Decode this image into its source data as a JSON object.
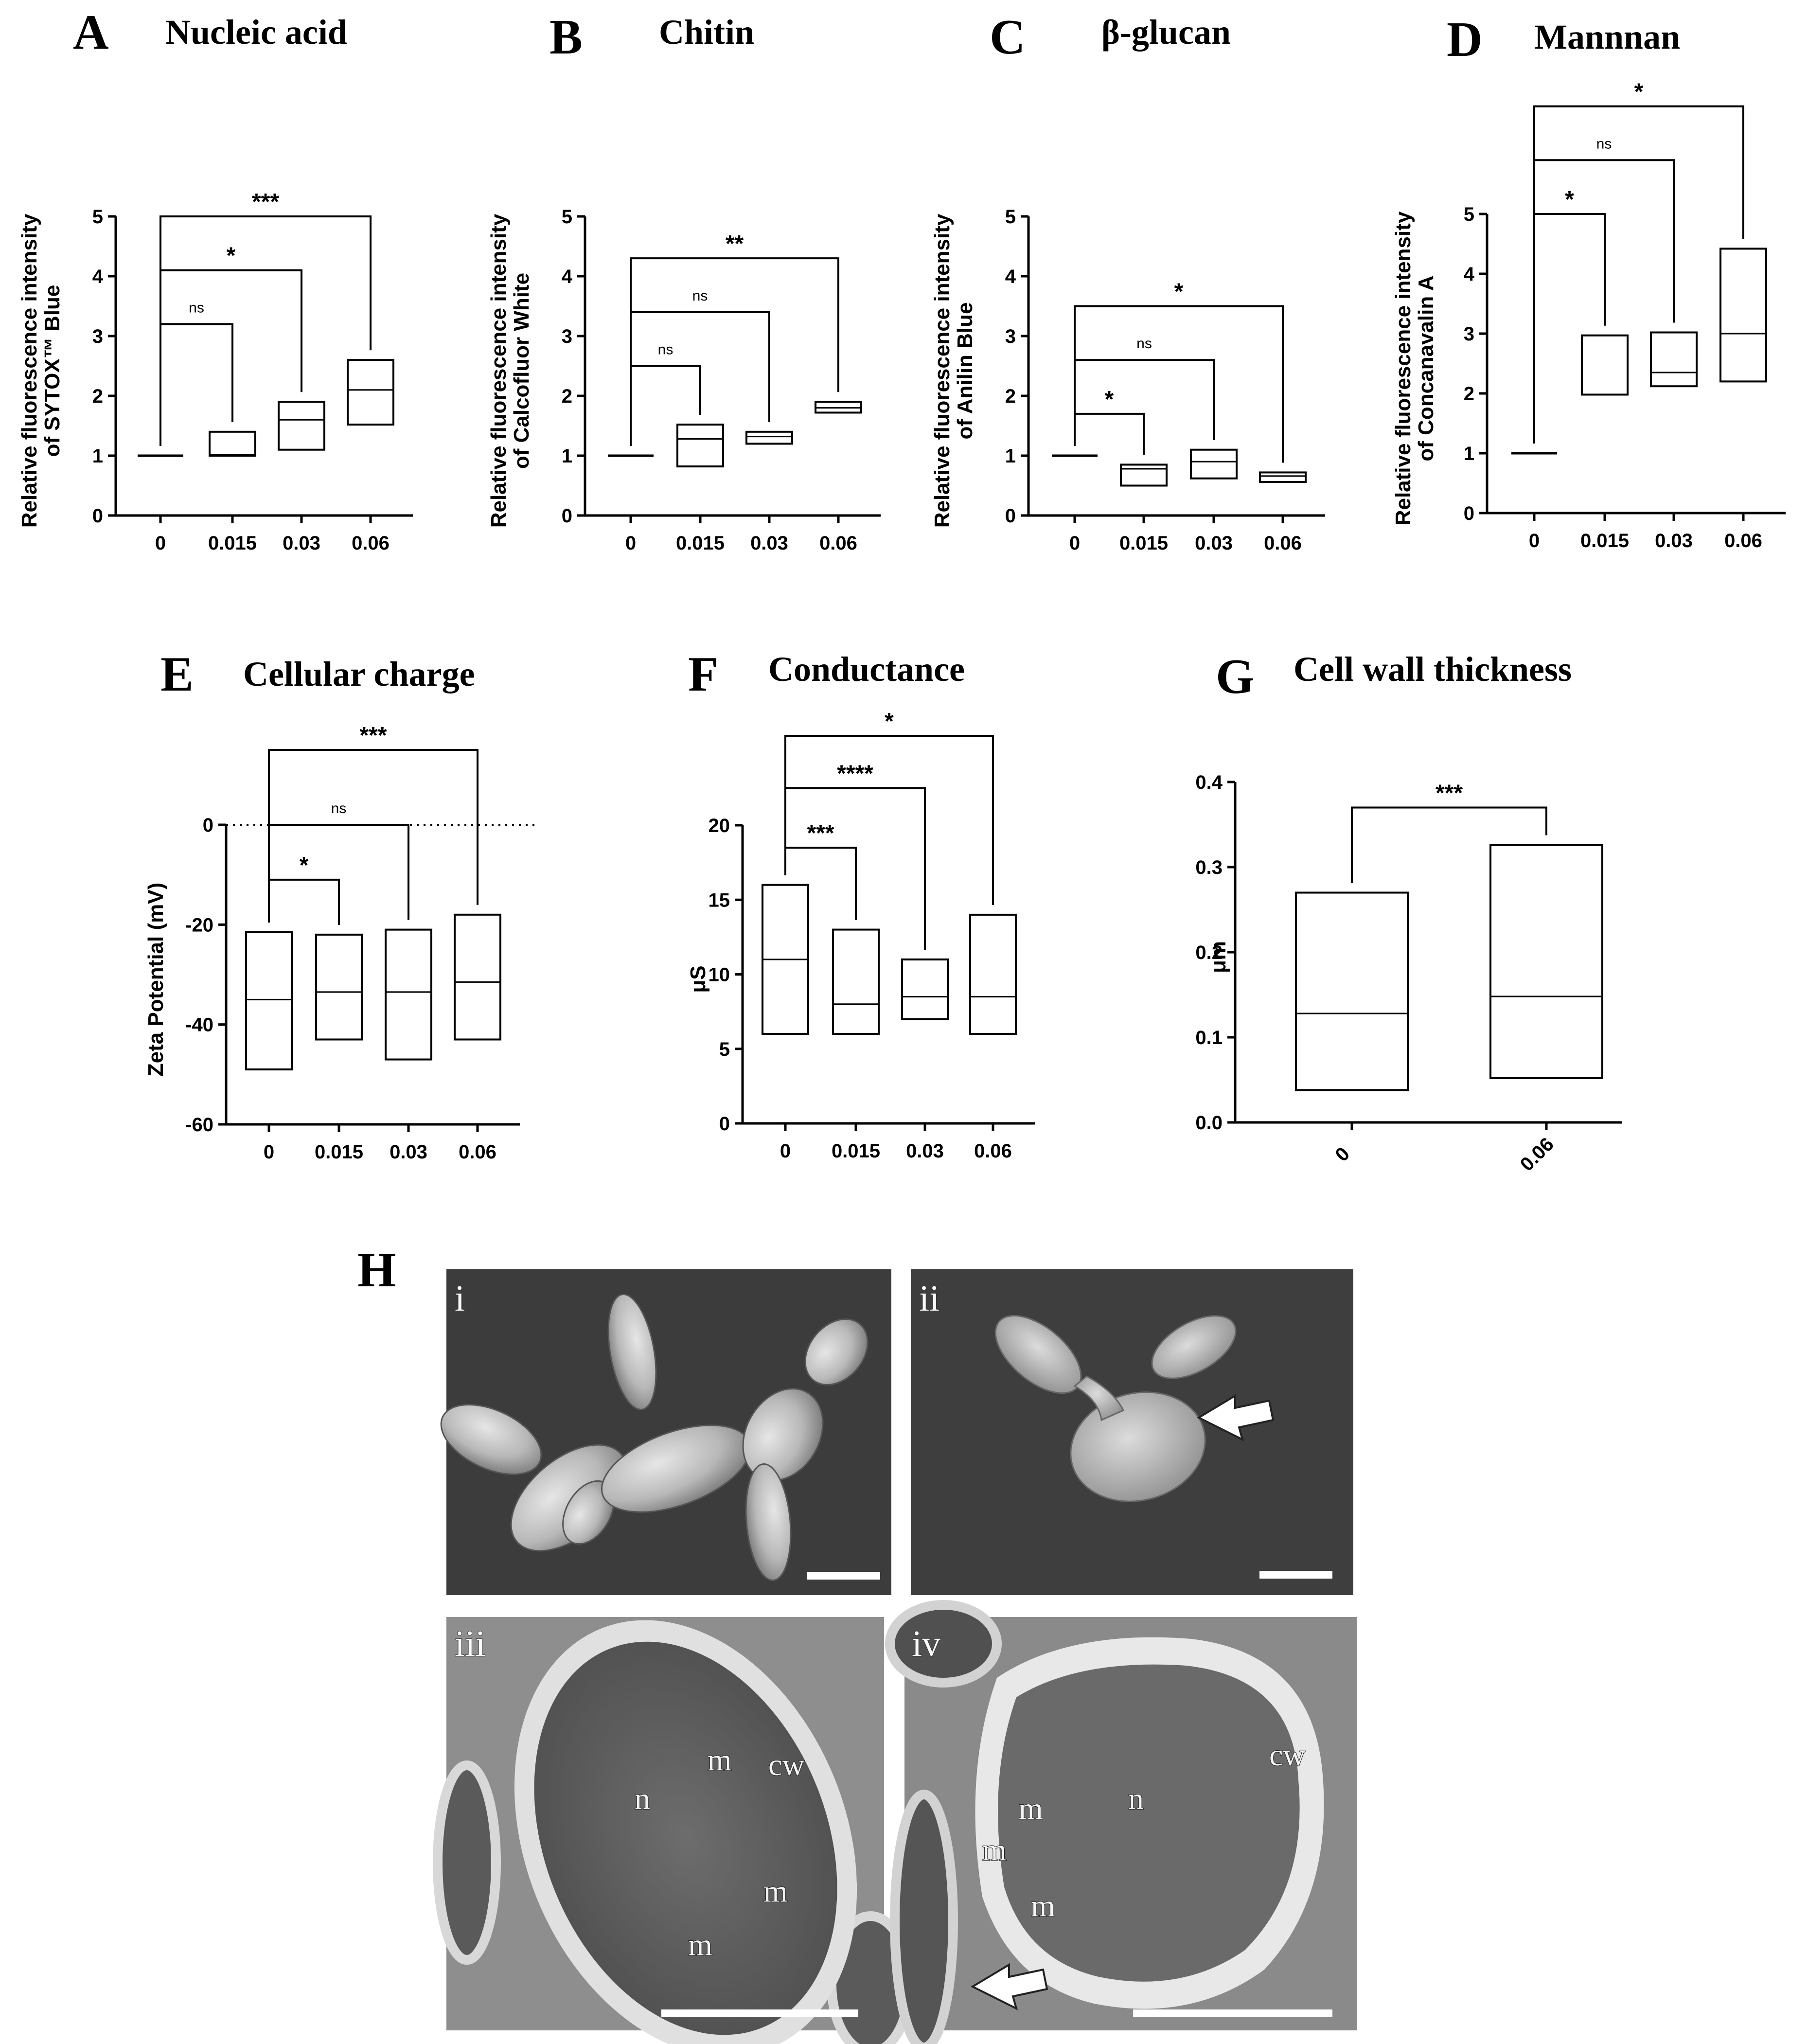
{
  "figure": {
    "panel_letters": [
      "A",
      "B",
      "C",
      "D",
      "E",
      "F",
      "G",
      "H"
    ],
    "colors": {
      "box_stroke": "#000000",
      "background": "#ffffff",
      "sem_background": "#3a3a3a",
      "tem_background": "#8c8c8c",
      "scalebar": "#ffffff"
    }
  },
  "chart_data": [
    {
      "panel": "A",
      "type": "box",
      "title": "Nucleic acid",
      "ylabel_lines": [
        "Relative fluorescence intensity",
        "of SYTOX™ Blue"
      ],
      "categories": [
        "0",
        "0.015",
        "0.03",
        "0.06"
      ],
      "yticks": [
        "0",
        "1",
        "2",
        "3",
        "4",
        "5"
      ],
      "ylim": [
        0,
        5
      ],
      "boxes": [
        {
          "low": 1.0,
          "median": 1.0,
          "high": 1.0
        },
        {
          "low": 1.0,
          "median": 1.02,
          "high": 1.4
        },
        {
          "low": 1.1,
          "median": 1.6,
          "high": 1.9
        },
        {
          "low": 1.52,
          "median": 2.1,
          "high": 2.6
        }
      ],
      "comparisons": [
        {
          "to": 1,
          "label": "ns",
          "level": 3.2
        },
        {
          "to": 2,
          "label": "*",
          "level": 4.1
        },
        {
          "to": 3,
          "label": "***",
          "level": 5.0
        }
      ]
    },
    {
      "panel": "B",
      "type": "box",
      "title": "Chitin",
      "ylabel_lines": [
        "Relative fluorescence intensity",
        "of Calcofluor White"
      ],
      "categories": [
        "0",
        "0.015",
        "0.03",
        "0.06"
      ],
      "yticks": [
        "0",
        "1",
        "2",
        "3",
        "4",
        "5"
      ],
      "ylim": [
        0,
        5
      ],
      "boxes": [
        {
          "low": 1.0,
          "median": 1.0,
          "high": 1.0
        },
        {
          "low": 0.82,
          "median": 1.28,
          "high": 1.52
        },
        {
          "low": 1.2,
          "median": 1.32,
          "high": 1.4
        },
        {
          "low": 1.72,
          "median": 1.8,
          "high": 1.9
        }
      ],
      "comparisons": [
        {
          "to": 1,
          "label": "ns",
          "level": 2.5
        },
        {
          "to": 2,
          "label": "ns",
          "level": 3.4
        },
        {
          "to": 3,
          "label": "**",
          "level": 4.3
        }
      ]
    },
    {
      "panel": "C",
      "type": "box",
      "title": "β-glucan",
      "ylabel_lines": [
        "Relative fluorescence intensity",
        "of Anilin Blue"
      ],
      "categories": [
        "0",
        "0.015",
        "0.03",
        "0.06"
      ],
      "yticks": [
        "0",
        "1",
        "2",
        "3",
        "4",
        "5"
      ],
      "ylim": [
        0,
        5
      ],
      "boxes": [
        {
          "low": 1.0,
          "median": 1.0,
          "high": 1.0
        },
        {
          "low": 0.5,
          "median": 0.78,
          "high": 0.85
        },
        {
          "low": 0.62,
          "median": 0.9,
          "high": 1.1
        },
        {
          "low": 0.56,
          "median": 0.66,
          "high": 0.72
        }
      ],
      "comparisons": [
        {
          "to": 1,
          "label": "*",
          "level": 1.7
        },
        {
          "to": 2,
          "label": "ns",
          "level": 2.6
        },
        {
          "to": 3,
          "label": "*",
          "level": 3.5
        }
      ]
    },
    {
      "panel": "D",
      "type": "box",
      "title": "Mannnan",
      "ylabel_lines": [
        "Relative fluorescence intensity",
        "of Concanavalin A"
      ],
      "categories": [
        "0",
        "0.015",
        "0.03",
        "0.06"
      ],
      "yticks": [
        "0",
        "1",
        "2",
        "3",
        "4",
        "5"
      ],
      "ylim": [
        0,
        5
      ],
      "boxes": [
        {
          "low": 1.0,
          "median": 1.0,
          "high": 1.0
        },
        {
          "low": 1.98,
          "median": 2.97,
          "high": 2.97
        },
        {
          "low": 2.12,
          "median": 2.35,
          "high": 3.02
        },
        {
          "low": 2.2,
          "median": 3.0,
          "high": 4.42
        }
      ],
      "comparisons": [
        {
          "to": 1,
          "label": "*",
          "level": 5.0
        },
        {
          "to": 2,
          "label": "ns",
          "level": 5.9
        },
        {
          "to": 3,
          "label": "*",
          "level": 6.8
        }
      ]
    },
    {
      "panel": "E",
      "type": "box",
      "title": "Cellular charge",
      "ylabel_lines": [
        "Zeta Potential (mV)"
      ],
      "categories": [
        "0",
        "0.015",
        "0.03",
        "0.06"
      ],
      "yticks": [
        "-60",
        "-40",
        "-20",
        "0"
      ],
      "ylim": [
        -60,
        0
      ],
      "zero_line": true,
      "boxes": [
        {
          "low": -49,
          "median": -35,
          "high": -21.5
        },
        {
          "low": -43,
          "median": -33.5,
          "high": -22
        },
        {
          "low": -47,
          "median": -33.5,
          "high": -21
        },
        {
          "low": -43,
          "median": -31.5,
          "high": -18
        }
      ],
      "comparisons": [
        {
          "to": 1,
          "label": "*",
          "level": -11
        },
        {
          "to": 2,
          "label": "ns",
          "level": 0
        },
        {
          "to": 3,
          "label": "***",
          "level": 15
        }
      ]
    },
    {
      "panel": "F",
      "type": "box",
      "title": "Conductance",
      "ylabel_lines": [
        "μS"
      ],
      "categories": [
        "0",
        "0.015",
        "0.03",
        "0.06"
      ],
      "yticks": [
        "0",
        "5",
        "10",
        "15",
        "20"
      ],
      "ylim": [
        0,
        20
      ],
      "boxes": [
        {
          "low": 6,
          "median": 11,
          "high": 16
        },
        {
          "low": 6,
          "median": 8,
          "high": 13
        },
        {
          "low": 7,
          "median": 8.5,
          "high": 11
        },
        {
          "low": 6,
          "median": 8.5,
          "high": 14
        }
      ],
      "comparisons": [
        {
          "to": 1,
          "label": "***",
          "level": 18.5
        },
        {
          "to": 2,
          "label": "****",
          "level": 22.5
        },
        {
          "to": 3,
          "label": "*",
          "level": 26
        }
      ]
    },
    {
      "panel": "G",
      "type": "box",
      "title": "Cell wall thickness",
      "ylabel_lines": [
        "μm"
      ],
      "categories": [
        "0",
        "0.06"
      ],
      "yticks": [
        "0.0",
        "0.1",
        "0.2",
        "0.3",
        "0.4"
      ],
      "ylim": [
        0,
        0.4
      ],
      "boxes": [
        {
          "low": 0.038,
          "median": 0.128,
          "high": 0.27
        },
        {
          "low": 0.052,
          "median": 0.148,
          "high": 0.326
        }
      ],
      "comparisons": [
        {
          "to": 1,
          "label": "***",
          "level": 0.37
        }
      ]
    }
  ],
  "micrographs": {
    "panels": [
      {
        "id": "i",
        "label": "i",
        "labels": []
      },
      {
        "id": "ii",
        "label": "ii",
        "labels": []
      },
      {
        "id": "iii",
        "label": "iii",
        "labels": [
          "m",
          "cw",
          "n",
          "m",
          "m"
        ]
      },
      {
        "id": "iv",
        "label": "iv",
        "labels": [
          "cw",
          "m",
          "n",
          "m",
          "m"
        ]
      }
    ]
  }
}
